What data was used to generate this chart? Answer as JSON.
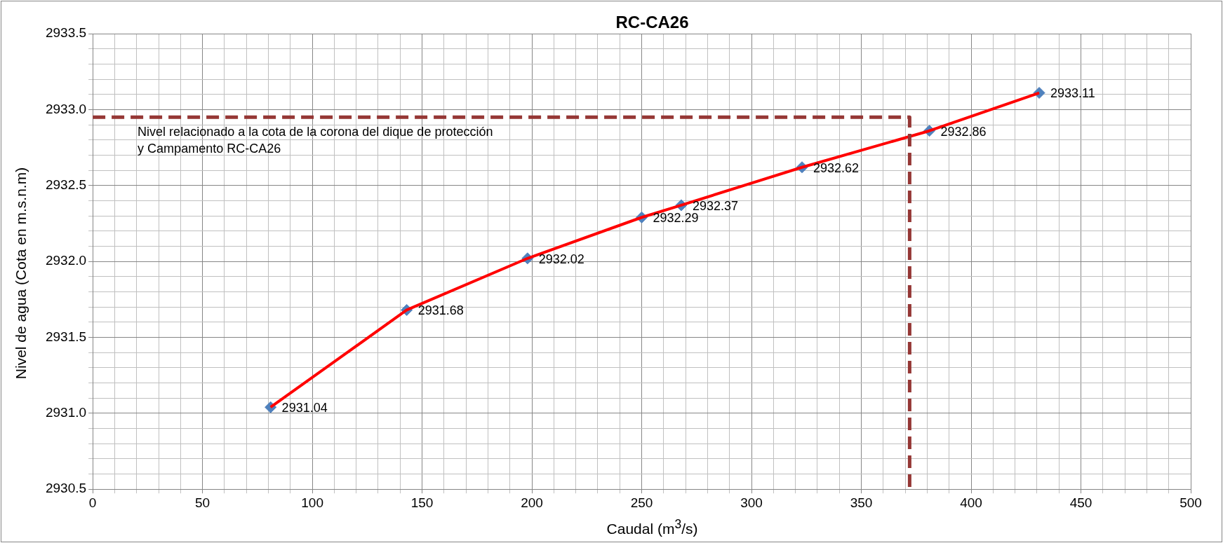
{
  "chart_data": {
    "type": "line",
    "title": "RC-CA26",
    "xlabel": "Caudal (m$^{3}$/s)",
    "ylabel": "Nivel de agua (Cota en m.s.n.m)",
    "xlim": [
      0,
      500
    ],
    "ylim": [
      2930.5,
      2933.5
    ],
    "xticks": [
      0,
      {
        "value": 10,
        "label": null
      },
      {
        "value": 20,
        "label": null
      },
      {
        "value": 30,
        "label": null
      },
      {
        "value": 40,
        "label": null
      },
      50,
      {
        "value": 60,
        "label": null
      },
      {
        "value": 70,
        "label": null
      },
      {
        "value": 80,
        "label": null
      },
      {
        "value": 90,
        "label": null
      },
      100,
      {
        "value": 110,
        "label": null
      },
      {
        "value": 120,
        "label": null
      },
      {
        "value": 130,
        "label": null
      },
      {
        "value": 140,
        "label": null
      },
      150,
      {
        "value": 160,
        "label": null
      },
      {
        "value": 170,
        "label": null
      },
      {
        "value": 180,
        "label": null
      },
      {
        "value": 190,
        "label": null
      },
      200,
      {
        "value": 210,
        "label": null
      },
      {
        "value": 220,
        "label": null
      },
      {
        "value": 230,
        "label": null
      },
      {
        "value": 240,
        "label": null
      },
      250,
      {
        "value": 260,
        "label": null
      },
      {
        "value": 270,
        "label": null
      },
      {
        "value": 280,
        "label": null
      },
      {
        "value": 290,
        "label": null
      },
      300,
      {
        "value": 310,
        "label": null
      },
      {
        "value": 320,
        "label": null
      },
      {
        "value": 330,
        "label": null
      },
      {
        "value": 340,
        "label": null
      },
      350,
      {
        "value": 360,
        "label": null
      },
      {
        "value": 370,
        "label": null
      },
      {
        "value": 380,
        "label": null
      },
      {
        "value": 390,
        "label": null
      },
      400,
      {
        "value": 410,
        "label": null
      },
      {
        "value": 420,
        "label": null
      },
      {
        "value": 430,
        "label": null
      },
      {
        "value": 440,
        "label": null
      },
      450,
      {
        "value": 460,
        "label": null
      },
      {
        "value": 470,
        "label": null
      },
      {
        "value": 480,
        "label": null
      },
      {
        "value": 490,
        "label": null
      },
      500
    ],
    "yticks": [
      {
        "value": 2930.5,
        "label": "2930.5"
      },
      {
        "value": 2930.6,
        "label": null
      },
      {
        "value": 2930.7,
        "label": null
      },
      {
        "value": 2930.8,
        "label": null
      },
      {
        "value": 2930.9,
        "label": null
      },
      {
        "value": 2931.0,
        "label": "2931.0"
      },
      {
        "value": 2931.1,
        "label": null
      },
      {
        "value": 2931.2,
        "label": null
      },
      {
        "value": 2931.3,
        "label": null
      },
      {
        "value": 2931.4,
        "label": null
      },
      {
        "value": 2931.5,
        "label": "2931.5"
      },
      {
        "value": 2931.6,
        "label": null
      },
      {
        "value": 2931.7,
        "label": null
      },
      {
        "value": 2931.8,
        "label": null
      },
      {
        "value": 2931.9,
        "label": null
      },
      {
        "value": 2932.0,
        "label": "2932.0"
      },
      {
        "value": 2932.1,
        "label": null
      },
      {
        "value": 2932.2,
        "label": null
      },
      {
        "value": 2932.3,
        "label": null
      },
      {
        "value": 2932.4,
        "label": null
      },
      {
        "value": 2932.5,
        "label": "2932.5"
      },
      {
        "value": 2932.6,
        "label": null
      },
      {
        "value": 2932.7,
        "label": null
      },
      {
        "value": 2932.8,
        "label": null
      },
      {
        "value": 2932.9,
        "label": null
      },
      {
        "value": 2933.0,
        "label": "2933.0"
      },
      {
        "value": 2933.1,
        "label": null
      },
      {
        "value": 2933.2,
        "label": null
      },
      {
        "value": 2933.3,
        "label": null
      },
      {
        "value": 2933.4,
        "label": null
      },
      {
        "value": 2933.5,
        "label": "2933.5"
      }
    ],
    "grid": true,
    "series": [
      {
        "color": "#953735",
        "line_style": "dashed",
        "marker": "none",
        "x": [
          0,
          372,
          372
        ],
        "values": [
          2932.95,
          2932.95,
          2930.5
        ]
      },
      {
        "color": "#ff0000",
        "line_style": "solid",
        "marker": "none",
        "x": [
          81,
          143,
          198,
          250,
          268,
          323,
          381,
          431
        ],
        "values": [
          2931.04,
          2931.68,
          2932.02,
          2932.29,
          2932.37,
          2932.62,
          2932.86,
          2933.11
        ]
      },
      {
        "type": "scatter",
        "color": "#4f81bd",
        "marker": "diamond",
        "x": [
          81,
          143,
          198,
          250,
          268,
          323,
          381,
          431
        ],
        "values": [
          2931.04,
          2931.68,
          2932.02,
          2932.29,
          2932.37,
          2932.62,
          2932.86,
          2933.11
        ],
        "value_labels": [
          "2931.04",
          "2931.68",
          "2932.02",
          "2932.29",
          "2932.37",
          "2932.62",
          "2932.86",
          "2933.11"
        ]
      }
    ],
    "annotations": [
      "Nivel relacionado a la cota de la corona del dique de protección\ny Campamento RC-CA26"
    ]
  }
}
